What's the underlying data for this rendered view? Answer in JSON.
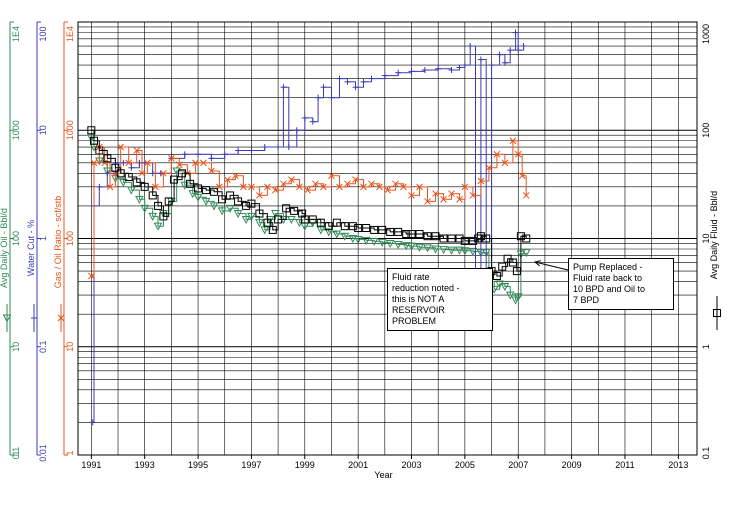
{
  "chart_data": {
    "type": "line",
    "xlabel": "Year",
    "x_ticks": [
      "1991",
      "1993",
      "1995",
      "1997",
      "1999",
      "2001",
      "2003",
      "2005",
      "2007",
      "2009",
      "2011",
      "2013"
    ],
    "xlim": [
      1990.5,
      2013.7
    ],
    "y_log_decades": 4,
    "axes": [
      {
        "id": "oil",
        "label": "Avg Daily Oil - Bbl/d",
        "color": "#2e8b57",
        "marker": "triangle-down",
        "ticks": [
          "1E4",
          "1000",
          "100",
          "10",
          "1",
          "0.1"
        ],
        "range": [
          0.1,
          10000
        ]
      },
      {
        "id": "water",
        "label": "Water Cut - %",
        "color": "#3b3bb5",
        "marker": "plus",
        "ticks": [
          "100",
          "10",
          "1",
          "0.1",
          "0.01"
        ],
        "range": [
          0.01,
          100
        ]
      },
      {
        "id": "gor",
        "label": "Gas / Oil Ratio - scf/stb",
        "color": "#e8541c",
        "marker": "x",
        "ticks": [
          "1E4",
          "1000",
          "100",
          "10",
          "1"
        ],
        "range": [
          1,
          10000
        ]
      },
      {
        "id": "fluid",
        "label": "Avg Daily Fluid - Bbl/d",
        "color": "#000000",
        "marker": "square",
        "ticks": [
          "1000",
          "100",
          "10",
          "1",
          "0.1"
        ],
        "range": [
          0.1,
          1000
        ]
      }
    ],
    "series": [
      {
        "axis": "oil",
        "color": "#2e8b57",
        "marker": "triangle-down",
        "points": [
          [
            1991.0,
            85
          ],
          [
            1991.1,
            70
          ],
          [
            1991.3,
            52
          ],
          [
            1991.6,
            42
          ],
          [
            1991.9,
            36
          ],
          [
            1992.2,
            33
          ],
          [
            1992.5,
            28
          ],
          [
            1992.8,
            23
          ],
          [
            1993.0,
            19
          ],
          [
            1993.3,
            16
          ],
          [
            1993.5,
            13
          ],
          [
            1993.7,
            17
          ],
          [
            1994.0,
            22
          ],
          [
            1994.2,
            42
          ],
          [
            1994.5,
            31
          ],
          [
            1994.8,
            26
          ],
          [
            1995.0,
            24
          ],
          [
            1995.3,
            22
          ],
          [
            1995.6,
            20
          ],
          [
            1995.9,
            18
          ],
          [
            1996.2,
            19
          ],
          [
            1996.5,
            17
          ],
          [
            1996.8,
            15
          ],
          [
            1997.0,
            16
          ],
          [
            1997.3,
            14
          ],
          [
            1997.5,
            12
          ],
          [
            1997.7,
            15
          ],
          [
            1997.9,
            17
          ],
          [
            1998.2,
            15
          ],
          [
            1998.5,
            15
          ],
          [
            1998.8,
            14
          ],
          [
            1999.0,
            13
          ],
          [
            1999.3,
            14
          ],
          [
            1999.6,
            12
          ],
          [
            1999.9,
            11.5
          ],
          [
            2000.2,
            11
          ],
          [
            2000.5,
            10.5
          ],
          [
            2000.8,
            10
          ],
          [
            2001.0,
            9.8
          ],
          [
            2001.3,
            9.6
          ],
          [
            2001.6,
            9.4
          ],
          [
            2001.9,
            9.2
          ],
          [
            2002.2,
            9.0
          ],
          [
            2002.5,
            8.8
          ],
          [
            2002.8,
            8.6
          ],
          [
            2003.0,
            8.5
          ],
          [
            2003.3,
            8.3
          ],
          [
            2003.6,
            8.2
          ],
          [
            2003.9,
            8.0
          ],
          [
            2004.2,
            7.9
          ],
          [
            2004.5,
            7.8
          ],
          [
            2004.8,
            7.8
          ],
          [
            2005.0,
            7.7
          ],
          [
            2005.3,
            7.6
          ],
          [
            2005.6,
            7.4
          ],
          [
            2005.8,
            7.4
          ],
          [
            2005.9,
            4.0
          ],
          [
            2006.1,
            3.4
          ],
          [
            2006.3,
            3.8
          ],
          [
            2006.5,
            3.6
          ],
          [
            2006.7,
            3.0
          ],
          [
            2006.9,
            2.7
          ],
          [
            2007.0,
            2.9
          ],
          [
            2007.1,
            7.2
          ],
          [
            2007.3,
            7.4
          ]
        ]
      },
      {
        "axis": "water",
        "color": "#3b3bb5",
        "marker": "plus",
        "points": [
          [
            1991.05,
            0.02
          ],
          [
            1991.1,
            2.0
          ],
          [
            1991.3,
            3.0
          ],
          [
            1991.6,
            4.0
          ],
          [
            1991.9,
            5.0
          ],
          [
            1992.2,
            5.0
          ],
          [
            1992.5,
            4.5
          ],
          [
            1992.8,
            5.0
          ],
          [
            1993.0,
            5.0
          ],
          [
            1993.3,
            4.0
          ],
          [
            1993.6,
            4.0
          ],
          [
            1994.0,
            5.5
          ],
          [
            1994.5,
            6.0
          ],
          [
            1995.0,
            6.0
          ],
          [
            1995.5,
            5.5
          ],
          [
            1996.0,
            6.0
          ],
          [
            1996.5,
            6.5
          ],
          [
            1997.0,
            6.5
          ],
          [
            1997.5,
            7.0
          ],
          [
            1998.0,
            7.0
          ],
          [
            1998.2,
            25.0
          ],
          [
            1998.4,
            7.0
          ],
          [
            1998.7,
            10.0
          ],
          [
            1999.0,
            13.0
          ],
          [
            1999.3,
            12.0
          ],
          [
            1999.5,
            20.0
          ],
          [
            1999.7,
            25.0
          ],
          [
            2000.0,
            20.0
          ],
          [
            2000.3,
            30.0
          ],
          [
            2000.6,
            28.0
          ],
          [
            2000.9,
            25.0
          ],
          [
            2001.2,
            28.0
          ],
          [
            2001.5,
            30.0
          ],
          [
            2002.0,
            32.0
          ],
          [
            2002.5,
            34.0
          ],
          [
            2003.0,
            35.0
          ],
          [
            2003.5,
            36.0
          ],
          [
            2004.0,
            37.0
          ],
          [
            2004.5,
            36.0
          ],
          [
            2004.8,
            38.0
          ],
          [
            2005.0,
            40.0
          ],
          [
            2005.2,
            60.0
          ],
          [
            2005.4,
            0.2
          ],
          [
            2005.6,
            45.0
          ],
          [
            2005.8,
            0.3
          ],
          [
            2006.0,
            40.0
          ],
          [
            2006.3,
            50.0
          ],
          [
            2006.5,
            42.0
          ],
          [
            2006.7,
            55.0
          ],
          [
            2006.9,
            80.0
          ],
          [
            2007.0,
            55.0
          ],
          [
            2007.2,
            60.0
          ]
        ]
      },
      {
        "axis": "gor",
        "color": "#e8541c",
        "marker": "x",
        "points": [
          [
            1991.0,
            45
          ],
          [
            1991.1,
            500
          ],
          [
            1991.3,
            700
          ],
          [
            1991.5,
            500
          ],
          [
            1991.7,
            300
          ],
          [
            1991.9,
            400
          ],
          [
            1992.1,
            700
          ],
          [
            1992.4,
            500
          ],
          [
            1992.7,
            650
          ],
          [
            1992.9,
            400
          ],
          [
            1993.1,
            500
          ],
          [
            1993.4,
            300
          ],
          [
            1993.7,
            400
          ],
          [
            1994.0,
            550
          ],
          [
            1994.3,
            480
          ],
          [
            1994.6,
            400
          ],
          [
            1994.9,
            500
          ],
          [
            1995.2,
            500
          ],
          [
            1995.5,
            420
          ],
          [
            1995.8,
            300
          ],
          [
            1996.1,
            350
          ],
          [
            1996.4,
            380
          ],
          [
            1996.7,
            300
          ],
          [
            1997.0,
            300
          ],
          [
            1997.3,
            250
          ],
          [
            1997.6,
            300
          ],
          [
            1997.9,
            280
          ],
          [
            1998.2,
            320
          ],
          [
            1998.5,
            350
          ],
          [
            1998.8,
            300
          ],
          [
            1999.1,
            280
          ],
          [
            1999.4,
            320
          ],
          [
            1999.7,
            300
          ],
          [
            2000.0,
            380
          ],
          [
            2000.3,
            300
          ],
          [
            2000.6,
            320
          ],
          [
            2000.9,
            350
          ],
          [
            2001.2,
            300
          ],
          [
            2001.5,
            320
          ],
          [
            2001.8,
            300
          ],
          [
            2002.1,
            280
          ],
          [
            2002.4,
            320
          ],
          [
            2002.7,
            300
          ],
          [
            2003.0,
            250
          ],
          [
            2003.3,
            300
          ],
          [
            2003.6,
            220
          ],
          [
            2003.9,
            260
          ],
          [
            2004.2,
            230
          ],
          [
            2004.5,
            260
          ],
          [
            2004.8,
            230
          ],
          [
            2005.0,
            300
          ],
          [
            2005.3,
            250
          ],
          [
            2005.6,
            340
          ],
          [
            2005.9,
            450
          ],
          [
            2006.2,
            600
          ],
          [
            2006.5,
            500
          ],
          [
            2006.8,
            800
          ],
          [
            2007.0,
            600
          ],
          [
            2007.15,
            380
          ],
          [
            2007.3,
            250
          ]
        ]
      },
      {
        "axis": "fluid",
        "color": "#000000",
        "marker": "square",
        "points": [
          [
            1991.0,
            100
          ],
          [
            1991.1,
            80
          ],
          [
            1991.3,
            65
          ],
          [
            1991.6,
            55
          ],
          [
            1991.9,
            45
          ],
          [
            1992.1,
            40
          ],
          [
            1992.4,
            37
          ],
          [
            1992.7,
            33
          ],
          [
            1993.0,
            30
          ],
          [
            1993.3,
            25
          ],
          [
            1993.5,
            20
          ],
          [
            1993.7,
            16
          ],
          [
            1993.9,
            22
          ],
          [
            1994.1,
            35
          ],
          [
            1994.4,
            40
          ],
          [
            1994.7,
            32
          ],
          [
            1995.0,
            29
          ],
          [
            1995.3,
            28
          ],
          [
            1995.6,
            27
          ],
          [
            1995.9,
            23
          ],
          [
            1996.2,
            25
          ],
          [
            1996.5,
            22
          ],
          [
            1996.8,
            20
          ],
          [
            1997.0,
            21
          ],
          [
            1997.3,
            17
          ],
          [
            1997.6,
            14
          ],
          [
            1997.8,
            12
          ],
          [
            1998.0,
            15
          ],
          [
            1998.3,
            19
          ],
          [
            1998.6,
            18
          ],
          [
            1998.9,
            17
          ],
          [
            1999.0,
            15
          ],
          [
            1999.3,
            15
          ],
          [
            1999.6,
            14
          ],
          [
            1999.9,
            13
          ],
          [
            2000.2,
            14
          ],
          [
            2000.5,
            13
          ],
          [
            2000.8,
            13
          ],
          [
            2001.0,
            12.5
          ],
          [
            2001.3,
            12.5
          ],
          [
            2001.6,
            12
          ],
          [
            2001.9,
            12
          ],
          [
            2002.2,
            11.5
          ],
          [
            2002.5,
            11.5
          ],
          [
            2002.8,
            11
          ],
          [
            2003.0,
            11
          ],
          [
            2003.3,
            11
          ],
          [
            2003.6,
            10.5
          ],
          [
            2003.9,
            10.5
          ],
          [
            2004.2,
            10
          ],
          [
            2004.5,
            10
          ],
          [
            2004.8,
            10
          ],
          [
            2005.0,
            9.5
          ],
          [
            2005.3,
            9.5
          ],
          [
            2005.5,
            10
          ],
          [
            2005.6,
            10.5
          ],
          [
            2005.8,
            10
          ],
          [
            2006.0,
            5.0
          ],
          [
            2006.2,
            4.5
          ],
          [
            2006.4,
            5.5
          ],
          [
            2006.6,
            6.5
          ],
          [
            2006.8,
            6.0
          ],
          [
            2006.95,
            5.0
          ],
          [
            2007.1,
            10.5
          ],
          [
            2007.3,
            10
          ]
        ]
      }
    ],
    "annotations": [
      {
        "id": "fluid-rate-note",
        "lines": [
          "Fluid rate",
          "reduction noted -",
          "this is NOT  A",
          "RESERVOIR",
          "PROBLEM"
        ]
      },
      {
        "id": "pump-note",
        "lines": [
          "Pump Replaced  -",
          "Fluid rate back to",
          "10  BPD and Oil to",
          "7 BPD"
        ]
      }
    ]
  }
}
